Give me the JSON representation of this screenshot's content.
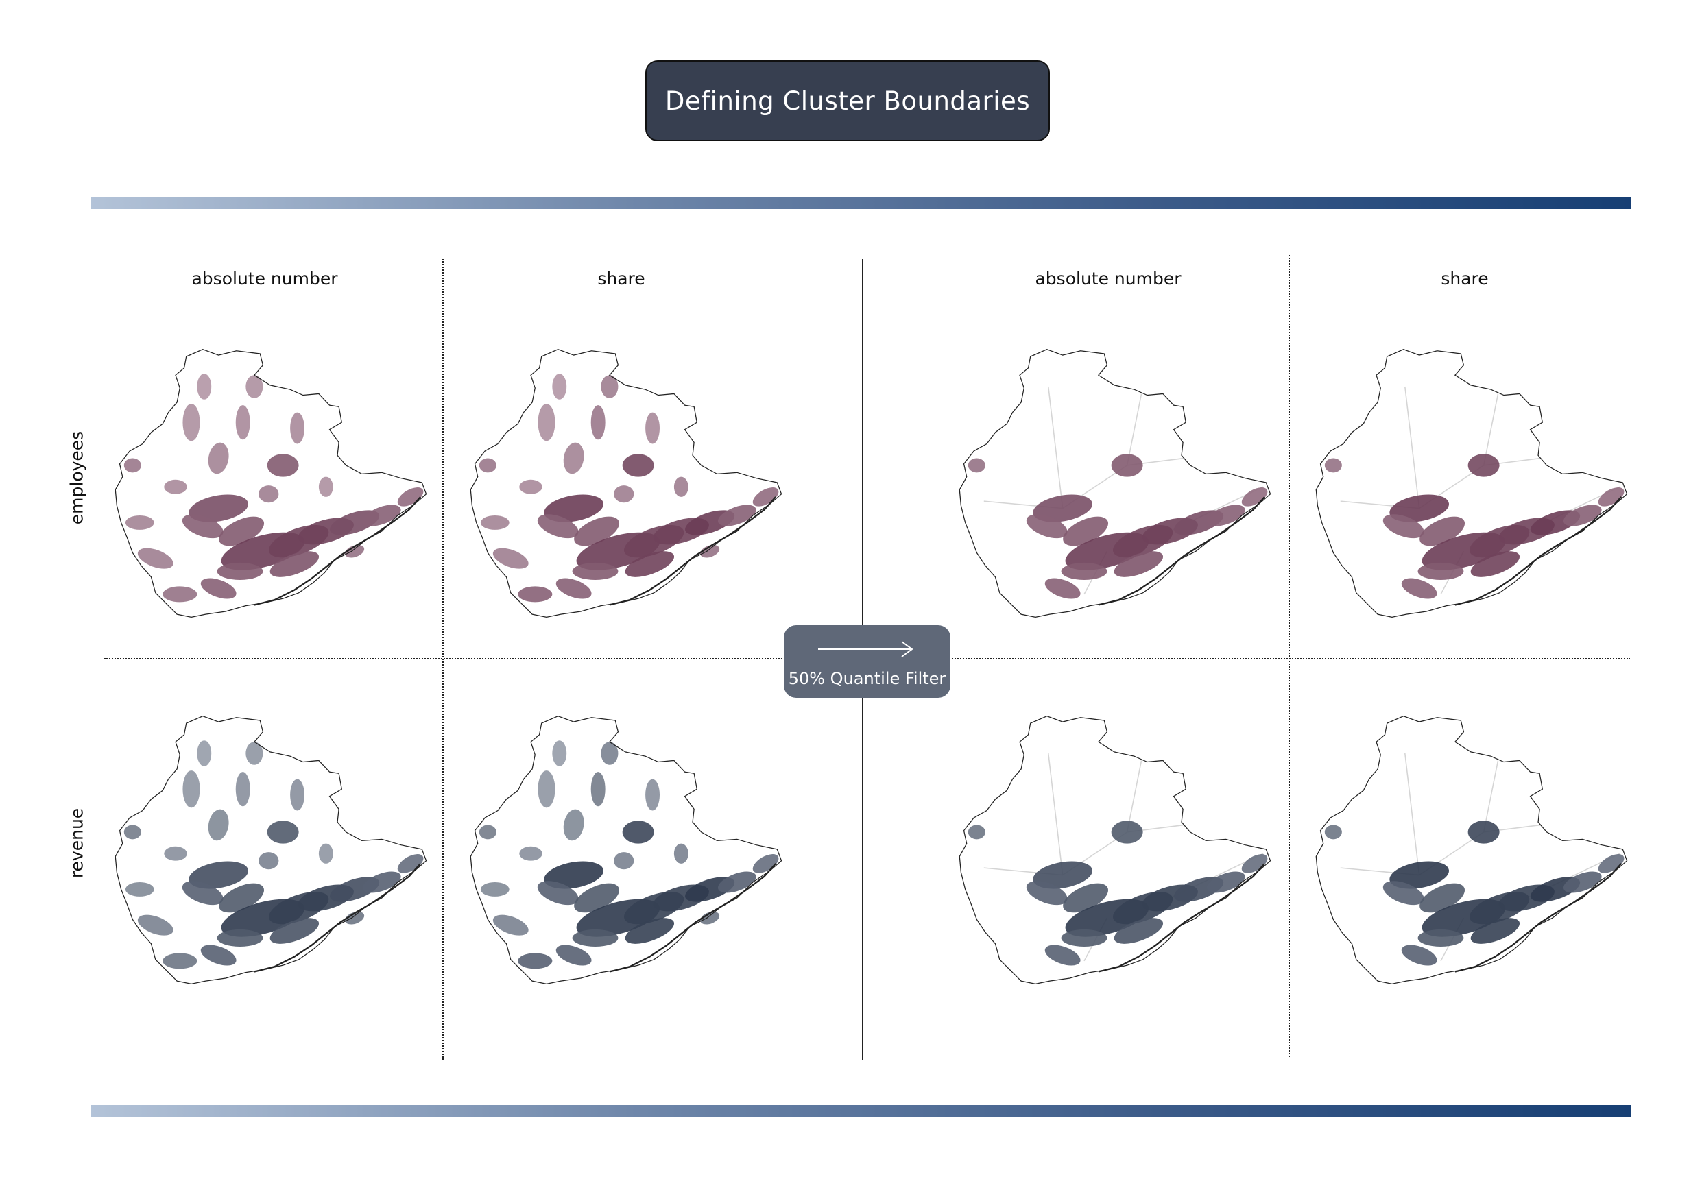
{
  "title": "Defining Cluster Boundaries",
  "columns": {
    "left_absolute": "absolute number",
    "left_share": "share",
    "right_absolute": "absolute number",
    "right_share": "share"
  },
  "rows": {
    "employees": "employees",
    "revenue": "revenue"
  },
  "filter": {
    "label": "50% Quantile Filter",
    "arrow_icon": "right-arrow-icon"
  },
  "colors": {
    "title_bg": "#373f50",
    "filter_bg": "#5f6878",
    "employees_dark": "#6b3d56",
    "employees_light": "#c9b3bf",
    "revenue_dark": "#2f3a4e",
    "revenue_light": "#b8bdc6",
    "band_start": "#b3c3d8",
    "band_end": "#173f74"
  },
  "maps": [
    {
      "id": "emp-abs",
      "row": "employees",
      "column": "absolute number",
      "filtered": false
    },
    {
      "id": "emp-share",
      "row": "employees",
      "column": "share",
      "filtered": false
    },
    {
      "id": "emp-abs-f",
      "row": "employees",
      "column": "absolute number",
      "filtered": true
    },
    {
      "id": "emp-share-f",
      "row": "employees",
      "column": "share",
      "filtered": true
    },
    {
      "id": "rev-abs",
      "row": "revenue",
      "column": "absolute number",
      "filtered": false
    },
    {
      "id": "rev-share",
      "row": "revenue",
      "column": "share",
      "filtered": false
    },
    {
      "id": "rev-abs-f",
      "row": "revenue",
      "column": "absolute number",
      "filtered": true
    },
    {
      "id": "rev-share-f",
      "row": "revenue",
      "column": "share",
      "filtered": true
    }
  ]
}
